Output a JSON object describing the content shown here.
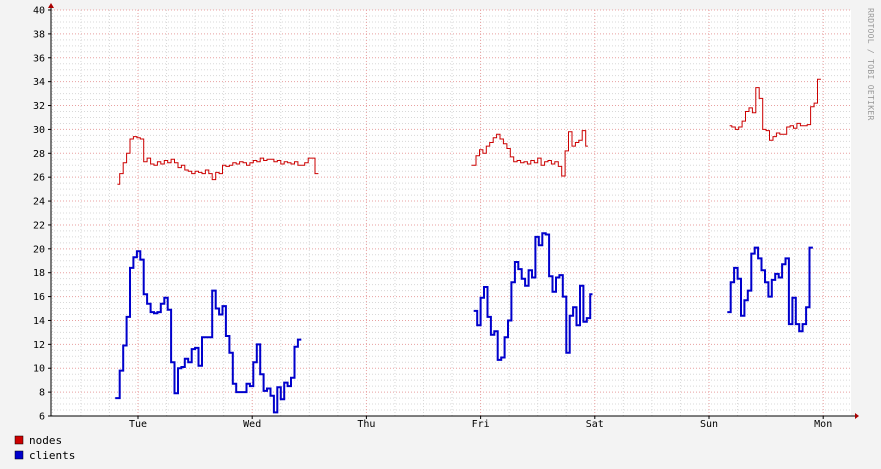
{
  "chart_data": {
    "type": "line",
    "title": "",
    "xlabel": "",
    "ylabel": "",
    "watermark": "RRDTOOL / TOBI OETIKER",
    "x_ticks": [
      "Tue",
      "Wed",
      "Thu",
      "Fri",
      "Sat",
      "Sun",
      "Mon"
    ],
    "ylim": [
      6,
      40
    ],
    "y_ticks": [
      6,
      8,
      10,
      12,
      14,
      16,
      18,
      20,
      22,
      24,
      26,
      28,
      30,
      32,
      34,
      36,
      38,
      40
    ],
    "grid": true,
    "legend_placement": "bottom-left",
    "colors": {
      "nodes": "#cc0000",
      "clients": "#0000cc",
      "grid_major": "#e8a0a0",
      "grid_minor": "#d8d8d8",
      "background": "#f3f3f3",
      "plot": "#ffffff"
    },
    "series": [
      {
        "name": "nodes",
        "color": "#cc0000",
        "segments": [
          [
            [
              -0.18,
              25.4
            ],
            [
              -0.16,
              26.3
            ],
            [
              -0.13,
              27.2
            ],
            [
              -0.1,
              28.0
            ],
            [
              -0.07,
              29.2
            ],
            [
              -0.04,
              29.4
            ],
            [
              -0.01,
              29.3
            ],
            [
              0.02,
              29.2
            ],
            [
              0.05,
              27.3
            ],
            [
              0.08,
              27.6
            ],
            [
              0.11,
              27.1
            ],
            [
              0.14,
              27.0
            ],
            [
              0.17,
              27.3
            ],
            [
              0.2,
              27.1
            ],
            [
              0.23,
              27.4
            ],
            [
              0.26,
              27.2
            ],
            [
              0.29,
              27.5
            ],
            [
              0.32,
              27.2
            ],
            [
              0.35,
              26.8
            ],
            [
              0.38,
              27.0
            ],
            [
              0.41,
              26.6
            ],
            [
              0.44,
              26.5
            ],
            [
              0.47,
              26.3
            ],
            [
              0.5,
              26.5
            ],
            [
              0.53,
              26.4
            ],
            [
              0.56,
              26.3
            ],
            [
              0.59,
              26.6
            ],
            [
              0.62,
              26.3
            ],
            [
              0.65,
              25.8
            ],
            [
              0.68,
              26.4
            ],
            [
              0.71,
              26.3
            ],
            [
              0.74,
              27.0
            ],
            [
              0.77,
              26.9
            ],
            [
              0.8,
              27.0
            ],
            [
              0.83,
              27.2
            ],
            [
              0.86,
              27.1
            ],
            [
              0.89,
              27.3
            ],
            [
              0.92,
              27.2
            ],
            [
              0.95,
              27.0
            ],
            [
              0.98,
              27.2
            ],
            [
              1.01,
              27.4
            ],
            [
              1.04,
              27.3
            ],
            [
              1.07,
              27.6
            ],
            [
              1.1,
              27.4
            ],
            [
              1.13,
              27.5
            ],
            [
              1.16,
              27.5
            ],
            [
              1.19,
              27.3
            ],
            [
              1.22,
              27.4
            ],
            [
              1.25,
              27.1
            ],
            [
              1.28,
              27.3
            ],
            [
              1.31,
              27.2
            ],
            [
              1.34,
              27.1
            ],
            [
              1.37,
              27.3
            ],
            [
              1.4,
              27.0
            ],
            [
              1.43,
              27.0
            ],
            [
              1.46,
              27.2
            ],
            [
              1.49,
              27.6
            ],
            [
              1.52,
              27.6
            ],
            [
              1.55,
              26.3
            ],
            [
              1.58,
              26.3
            ]
          ],
          [
            [
              2.92,
              27.0
            ],
            [
              2.96,
              27.8
            ],
            [
              2.99,
              28.3
            ],
            [
              3.02,
              28.0
            ],
            [
              3.05,
              28.6
            ],
            [
              3.08,
              28.9
            ],
            [
              3.11,
              29.3
            ],
            [
              3.14,
              29.6
            ],
            [
              3.17,
              29.2
            ],
            [
              3.2,
              28.8
            ],
            [
              3.23,
              28.4
            ],
            [
              3.26,
              27.7
            ],
            [
              3.29,
              27.3
            ],
            [
              3.32,
              27.4
            ],
            [
              3.35,
              27.2
            ],
            [
              3.38,
              27.3
            ],
            [
              3.41,
              27.1
            ],
            [
              3.44,
              27.4
            ],
            [
              3.47,
              27.2
            ],
            [
              3.5,
              27.6
            ],
            [
              3.53,
              27.0
            ],
            [
              3.56,
              27.3
            ],
            [
              3.59,
              27.4
            ],
            [
              3.62,
              27.1
            ],
            [
              3.65,
              27.3
            ],
            [
              3.68,
              26.9
            ],
            [
              3.71,
              26.1
            ],
            [
              3.74,
              28.2
            ],
            [
              3.77,
              29.8
            ],
            [
              3.8,
              28.6
            ],
            [
              3.83,
              28.9
            ],
            [
              3.86,
              29.1
            ],
            [
              3.89,
              29.9
            ],
            [
              3.92,
              28.6
            ],
            [
              3.94,
              28.6
            ]
          ],
          [
            [
              5.18,
              30.3
            ],
            [
              5.2,
              30.2
            ],
            [
              5.23,
              30.0
            ],
            [
              5.26,
              30.2
            ],
            [
              5.29,
              30.7
            ],
            [
              5.32,
              31.5
            ],
            [
              5.35,
              31.8
            ],
            [
              5.38,
              31.4
            ],
            [
              5.41,
              33.5
            ],
            [
              5.44,
              32.6
            ],
            [
              5.47,
              30.0
            ],
            [
              5.5,
              29.9
            ],
            [
              5.53,
              29.1
            ],
            [
              5.56,
              29.4
            ],
            [
              5.59,
              29.7
            ],
            [
              5.62,
              29.6
            ],
            [
              5.65,
              29.6
            ],
            [
              5.68,
              30.2
            ],
            [
              5.71,
              30.3
            ],
            [
              5.74,
              30.1
            ],
            [
              5.77,
              30.5
            ],
            [
              5.8,
              30.3
            ],
            [
              5.83,
              30.3
            ],
            [
              5.86,
              30.4
            ],
            [
              5.89,
              31.9
            ],
            [
              5.92,
              32.2
            ],
            [
              5.95,
              34.2
            ],
            [
              5.98,
              34.2
            ]
          ]
        ]
      },
      {
        "name": "clients",
        "color": "#0000cc",
        "segments": [
          [
            [
              -0.2,
              7.5
            ],
            [
              -0.18,
              7.5
            ],
            [
              -0.16,
              9.8
            ],
            [
              -0.13,
              11.9
            ],
            [
              -0.1,
              14.3
            ],
            [
              -0.07,
              18.4
            ],
            [
              -0.04,
              19.3
            ],
            [
              -0.01,
              19.8
            ],
            [
              0.02,
              19.1
            ],
            [
              0.05,
              16.2
            ],
            [
              0.08,
              15.4
            ],
            [
              0.11,
              14.7
            ],
            [
              0.14,
              14.6
            ],
            [
              0.17,
              14.7
            ],
            [
              0.2,
              15.4
            ],
            [
              0.23,
              15.9
            ],
            [
              0.26,
              14.9
            ],
            [
              0.29,
              10.5
            ],
            [
              0.32,
              7.9
            ],
            [
              0.35,
              10.0
            ],
            [
              0.38,
              10.1
            ],
            [
              0.41,
              10.8
            ],
            [
              0.44,
              10.5
            ],
            [
              0.47,
              11.6
            ],
            [
              0.5,
              11.7
            ],
            [
              0.53,
              10.2
            ],
            [
              0.56,
              12.6
            ],
            [
              0.59,
              12.6
            ],
            [
              0.62,
              12.6
            ],
            [
              0.65,
              16.5
            ],
            [
              0.68,
              15.0
            ],
            [
              0.71,
              14.5
            ],
            [
              0.74,
              15.2
            ],
            [
              0.77,
              12.7
            ],
            [
              0.8,
              11.3
            ],
            [
              0.83,
              8.7
            ],
            [
              0.86,
              8.0
            ],
            [
              0.89,
              8.0
            ],
            [
              0.92,
              8.0
            ],
            [
              0.95,
              8.7
            ],
            [
              0.98,
              8.5
            ],
            [
              1.01,
              10.5
            ],
            [
              1.04,
              12.0
            ],
            [
              1.07,
              9.5
            ],
            [
              1.1,
              8.1
            ],
            [
              1.13,
              8.3
            ],
            [
              1.16,
              7.7
            ],
            [
              1.19,
              6.3
            ],
            [
              1.22,
              8.4
            ],
            [
              1.25,
              7.4
            ],
            [
              1.28,
              8.8
            ],
            [
              1.31,
              8.5
            ],
            [
              1.34,
              9.2
            ],
            [
              1.37,
              11.8
            ],
            [
              1.4,
              12.4
            ],
            [
              1.43,
              12.4
            ]
          ],
          [
            [
              2.94,
              14.8
            ],
            [
              2.97,
              13.6
            ],
            [
              3.0,
              15.9
            ],
            [
              3.03,
              16.8
            ],
            [
              3.06,
              14.3
            ],
            [
              3.09,
              12.8
            ],
            [
              3.12,
              13.1
            ],
            [
              3.15,
              10.7
            ],
            [
              3.18,
              10.9
            ],
            [
              3.21,
              12.6
            ],
            [
              3.24,
              14.0
            ],
            [
              3.27,
              17.2
            ],
            [
              3.3,
              18.9
            ],
            [
              3.33,
              18.3
            ],
            [
              3.36,
              17.5
            ],
            [
              3.39,
              16.9
            ],
            [
              3.42,
              18.2
            ],
            [
              3.45,
              17.6
            ],
            [
              3.48,
              21.0
            ],
            [
              3.51,
              20.3
            ],
            [
              3.54,
              21.3
            ],
            [
              3.57,
              21.2
            ],
            [
              3.6,
              17.7
            ],
            [
              3.63,
              16.4
            ],
            [
              3.66,
              17.6
            ],
            [
              3.69,
              17.8
            ],
            [
              3.72,
              16.0
            ],
            [
              3.75,
              11.3
            ],
            [
              3.78,
              14.4
            ],
            [
              3.81,
              15.1
            ],
            [
              3.84,
              13.6
            ],
            [
              3.87,
              16.9
            ],
            [
              3.9,
              13.9
            ],
            [
              3.93,
              14.2
            ],
            [
              3.96,
              16.2
            ],
            [
              3.98,
              16.2
            ]
          ],
          [
            [
              5.16,
              14.7
            ],
            [
              5.19,
              17.2
            ],
            [
              5.22,
              18.4
            ],
            [
              5.25,
              17.5
            ],
            [
              5.28,
              14.4
            ],
            [
              5.31,
              15.7
            ],
            [
              5.34,
              16.5
            ],
            [
              5.37,
              19.6
            ],
            [
              5.4,
              20.1
            ],
            [
              5.43,
              19.2
            ],
            [
              5.46,
              18.2
            ],
            [
              5.49,
              17.2
            ],
            [
              5.52,
              16.0
            ],
            [
              5.55,
              17.4
            ],
            [
              5.58,
              17.9
            ],
            [
              5.61,
              17.6
            ],
            [
              5.64,
              18.7
            ],
            [
              5.67,
              19.2
            ],
            [
              5.7,
              13.7
            ],
            [
              5.73,
              15.9
            ],
            [
              5.76,
              13.7
            ],
            [
              5.79,
              13.1
            ],
            [
              5.82,
              13.7
            ],
            [
              5.85,
              15.1
            ],
            [
              5.88,
              20.1
            ],
            [
              5.91,
              20.1
            ]
          ]
        ]
      }
    ]
  }
}
